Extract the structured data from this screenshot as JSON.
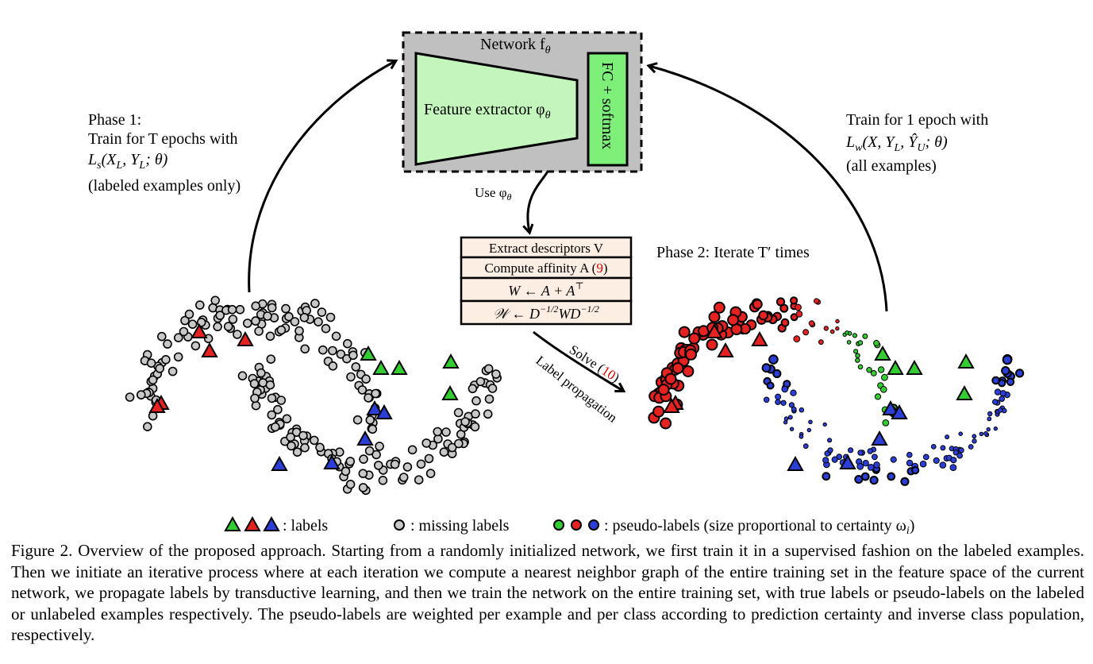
{
  "network": {
    "title": "Network f",
    "title_sub": "θ",
    "feature_extractor": "Feature extractor φ",
    "feature_extractor_sub": "θ",
    "fc_label": "FC + softmax"
  },
  "use_phi": {
    "text": "Use φ",
    "sub": "θ"
  },
  "phase1": {
    "line1": "Phase 1:",
    "line2": "Train for T epochs with",
    "line3": "L",
    "line3_sub": "s",
    "line3_rest": "(X",
    "line3_sub2": "L",
    "line3_mid": ", Y",
    "line3_sub3": "L",
    "line3_end": "; θ)",
    "line4": "(labeled examples only)"
  },
  "phase2_right": {
    "line1": "Train for 1 epoch with",
    "line2": "L",
    "line2_sub": "w",
    "line2_rest": "(X, Y",
    "line2_sub2": "L",
    "line2_mid": ", Ŷ",
    "line2_sub3": "U",
    "line2_end": "; θ)",
    "line3": "(all examples)"
  },
  "phase2_label": "Phase 2: Iterate T′ times",
  "steps": [
    {
      "text": "Extract descriptors V",
      "ref": ""
    },
    {
      "text": "Compute affinity A (",
      "ref": "9",
      "close": ")"
    },
    {
      "text": "W  ←  A + A",
      "sup": "⊤"
    },
    {
      "text": "𝒲 ← D",
      "sup": "−1/2",
      "mid": "WD",
      "sup2": "−1/2"
    }
  ],
  "solve": {
    "text": "Solve (",
    "ref": "10",
    "close": ")"
  },
  "label_propagation": "Label propagation",
  "legend": {
    "labels": ": labels",
    "missing": ": missing labels",
    "pseudo": ": pseudo-labels (size proportional to certainty ω",
    "pseudo_sub": "i",
    "pseudo_close": ")"
  },
  "caption": "Figure 2. Overview of the proposed approach.  Starting from a randomly initialized network, we first train it in a supervised fashion on the labeled examples.  Then we initiate an iterative process where at each iteration we compute a nearest neighbor graph of the entire training set in the feature space of the current network, we propagate labels by transductive learning, and then we train the network on the entire training set, with true labels or pseudo-labels on the labeled or unlabeled examples respectively. The pseudo-labels are weighted per example and per class according to prediction certainty and inverse class population, respectively.",
  "colors": {
    "green": "#33cc33",
    "red": "#e52222",
    "blue": "#2b3fd6",
    "gray": "#c8c8c8",
    "network_bg": "#c0c0c0",
    "extractor_fill": "#c4f5bc",
    "fc_fill": "#7ef07a",
    "step_fill": "#fdeee4",
    "ref_red": "#e00000"
  }
}
